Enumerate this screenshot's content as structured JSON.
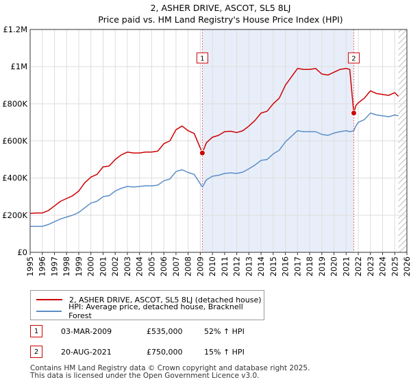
{
  "chart_data": {
    "type": "line",
    "title": "2, ASHER DRIVE, ASCOT, SL5 8LJ",
    "subtitle": "Price paid vs. HM Land Registry's House Price Index (HPI)",
    "xlim": [
      1995,
      2026
    ],
    "ylim": [
      0,
      1200000
    ],
    "x_ticks": [
      1995,
      1996,
      1997,
      1998,
      1999,
      2000,
      2001,
      2002,
      2003,
      2004,
      2005,
      2006,
      2007,
      2008,
      2009,
      2010,
      2011,
      2012,
      2013,
      2014,
      2015,
      2016,
      2017,
      2018,
      2019,
      2020,
      2021,
      2022,
      2023,
      2024,
      2025,
      2026
    ],
    "y_ticks": [
      {
        "value": 0,
        "label": "£0"
      },
      {
        "value": 200000,
        "label": "£200K"
      },
      {
        "value": 400000,
        "label": "£400K"
      },
      {
        "value": 600000,
        "label": "£600K"
      },
      {
        "value": 800000,
        "label": "£800K"
      },
      {
        "value": 1000000,
        "label": "£1M"
      },
      {
        "value": 1200000,
        "label": "£1.2M"
      }
    ],
    "grid": true,
    "series": [
      {
        "name": "2, ASHER DRIVE, ASCOT, SL5 8LJ (detached house)",
        "color": "#cc0000",
        "x": [
          1995,
          1995.5,
          1996,
          1996.5,
          1997,
          1997.5,
          1998,
          1998.5,
          1999,
          1999.5,
          2000,
          2000.5,
          2001,
          2001.5,
          2002,
          2002.5,
          2003,
          2003.5,
          2004,
          2004.5,
          2005,
          2005.5,
          2006,
          2006.5,
          2007,
          2007.5,
          2008,
          2008.5,
          2009.17,
          2009.5,
          2010,
          2010.5,
          2011,
          2011.5,
          2012,
          2012.5,
          2013,
          2013.5,
          2014,
          2014.5,
          2015,
          2015.5,
          2016,
          2016.5,
          2017,
          2017.5,
          2018,
          2018.5,
          2019,
          2019.5,
          2020,
          2020.5,
          2021,
          2021.3,
          2021.63,
          2021.8,
          2022,
          2022.5,
          2023,
          2023.5,
          2024,
          2024.5,
          2025,
          2025.3
        ],
        "y": [
          210000,
          212000,
          212000,
          225000,
          250000,
          275000,
          290000,
          305000,
          330000,
          375000,
          405000,
          420000,
          460000,
          465000,
          500000,
          525000,
          540000,
          535000,
          535000,
          540000,
          540000,
          545000,
          585000,
          600000,
          660000,
          680000,
          655000,
          640000,
          535000,
          590000,
          620000,
          630000,
          650000,
          652000,
          645000,
          655000,
          680000,
          710000,
          750000,
          760000,
          800000,
          830000,
          900000,
          945000,
          990000,
          985000,
          985000,
          990000,
          960000,
          955000,
          970000,
          985000,
          990000,
          985000,
          750000,
          790000,
          805000,
          830000,
          870000,
          855000,
          850000,
          845000,
          860000,
          840000
        ]
      },
      {
        "name": "HPI: Average price, detached house, Bracknell Forest",
        "color": "#5b8ec7",
        "x": [
          1995,
          1995.5,
          1996,
          1996.5,
          1997,
          1997.5,
          1998,
          1998.5,
          1999,
          1999.5,
          2000,
          2000.5,
          2001,
          2001.5,
          2002,
          2002.5,
          2003,
          2003.5,
          2004,
          2004.5,
          2005,
          2005.5,
          2006,
          2006.5,
          2007,
          2007.5,
          2008,
          2008.5,
          2009.17,
          2009.5,
          2010,
          2010.5,
          2011,
          2011.5,
          2012,
          2012.5,
          2013,
          2013.5,
          2014,
          2014.5,
          2015,
          2015.5,
          2016,
          2016.5,
          2017,
          2017.5,
          2018,
          2018.5,
          2019,
          2019.5,
          2020,
          2020.5,
          2021,
          2021.3,
          2021.63,
          2021.8,
          2022,
          2022.5,
          2023,
          2023.5,
          2024,
          2024.5,
          2025,
          2025.3
        ],
        "y": [
          140000,
          140000,
          140000,
          150000,
          165000,
          180000,
          190000,
          200000,
          215000,
          240000,
          265000,
          275000,
          300000,
          305000,
          330000,
          345000,
          355000,
          352000,
          355000,
          358000,
          358000,
          362000,
          385000,
          395000,
          435000,
          445000,
          430000,
          420000,
          352000,
          390000,
          410000,
          415000,
          425000,
          428000,
          425000,
          432000,
          450000,
          470000,
          495000,
          500000,
          530000,
          550000,
          595000,
          625000,
          655000,
          650000,
          650000,
          650000,
          635000,
          630000,
          642000,
          650000,
          655000,
          650000,
          655000,
          680000,
          700000,
          715000,
          750000,
          740000,
          735000,
          730000,
          740000,
          735000
        ]
      }
    ],
    "transactions": [
      {
        "id": "1",
        "x": 2009.17,
        "y": 535000,
        "date": "03-MAR-2009",
        "price": "£535,000",
        "hpi": "52% ↑ HPI"
      },
      {
        "id": "2",
        "x": 2021.63,
        "y": 750000,
        "date": "20-AUG-2021",
        "price": "£750,000",
        "hpi": "15% ↑ HPI"
      }
    ],
    "shaded_period": [
      2009.17,
      2021.63
    ],
    "hatched_after": 2025.3
  },
  "footer": {
    "line1": "Contains HM Land Registry data © Crown copyright and database right 2025.",
    "line2": "This data is licensed under the Open Government Licence v3.0."
  }
}
